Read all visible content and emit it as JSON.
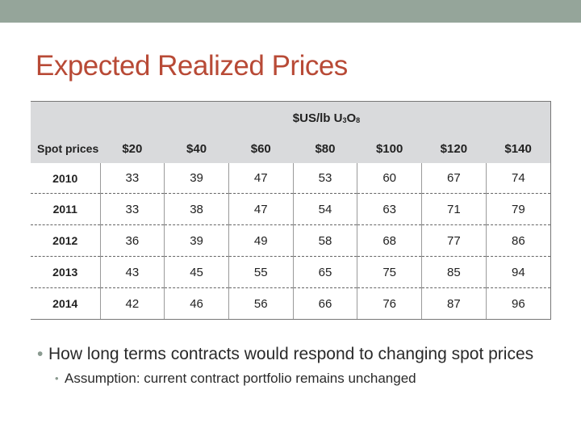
{
  "slide": {
    "title": "Expected Realized Prices",
    "accent_color": "#b84a36",
    "band_color": "#95a59a"
  },
  "table": {
    "unit_prefix": "$US/lb U",
    "unit_sub1": "3",
    "unit_mid": "O",
    "unit_sub2": "8",
    "row_header": "Spot prices",
    "columns": [
      "$20",
      "$40",
      "$60",
      "$80",
      "$100",
      "$120",
      "$140"
    ],
    "rows": [
      {
        "year": "2010",
        "values": [
          "33",
          "39",
          "47",
          "53",
          "60",
          "67",
          "74"
        ]
      },
      {
        "year": "2011",
        "values": [
          "33",
          "38",
          "47",
          "54",
          "63",
          "71",
          "79"
        ]
      },
      {
        "year": "2012",
        "values": [
          "36",
          "39",
          "49",
          "58",
          "68",
          "77",
          "86"
        ]
      },
      {
        "year": "2013",
        "values": [
          "43",
          "45",
          "55",
          "65",
          "75",
          "85",
          "94"
        ]
      },
      {
        "year": "2014",
        "values": [
          "42",
          "46",
          "56",
          "66",
          "76",
          "87",
          "96"
        ]
      }
    ]
  },
  "bullets": {
    "main": "How long terms contracts would respond to changing spot prices",
    "sub": "Assumption: current contract portfolio remains unchanged"
  }
}
